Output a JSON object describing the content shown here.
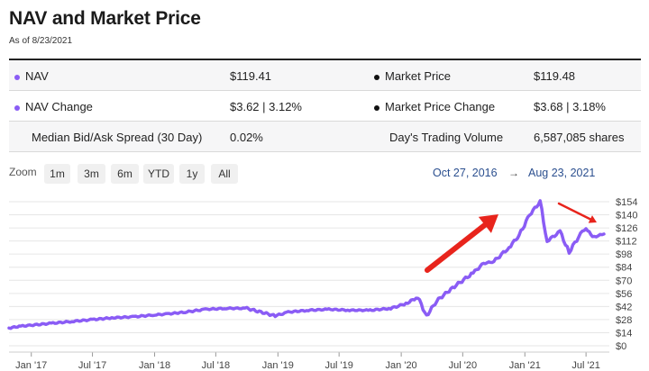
{
  "header": {
    "title": "NAV and Market Price",
    "as_of": "As of 8/23/2021"
  },
  "stats": {
    "nav_label": "NAV",
    "nav_value": "$119.41",
    "market_price_label": "Market Price",
    "market_price_value": "$119.48",
    "nav_change_label": "NAV Change",
    "nav_change_value": "$3.62 | 3.12%",
    "market_price_change_label": "Market Price Change",
    "market_price_change_value": "$3.68 | 3.18%",
    "spread_label": "Median Bid/Ask Spread (30 Day)",
    "spread_value": "0.02%",
    "volume_label": "Day's Trading Volume",
    "volume_value": "6,587,085 shares"
  },
  "colors": {
    "nav": "#8a5cf5",
    "market_price": "#111111",
    "arrow": "#e8241c"
  },
  "zoom": {
    "label": "Zoom",
    "buttons": [
      "1m",
      "3m",
      "6m",
      "YTD",
      "1y",
      "All"
    ]
  },
  "range": {
    "from": "Oct 27, 2016",
    "to": "Aug 23, 2021",
    "separator": "→"
  },
  "chart_data": {
    "type": "line",
    "x_tick_labels": [
      "Jan '17",
      "Jul '17",
      "Jan '18",
      "Jul '18",
      "Jan '19",
      "Jul '19",
      "Jan '20",
      "Jul '20",
      "Jan '21",
      "Jul '21"
    ],
    "y_tick_labels": [
      "$0",
      "$14",
      "$28",
      "$42",
      "$56",
      "$70",
      "$84",
      "$98",
      "$112",
      "$126",
      "$140",
      "$154"
    ],
    "ylim": [
      0,
      154
    ],
    "grid": true,
    "series": [
      {
        "x": [
          "2016-10-27",
          "2016-12-01",
          "2017-01-01",
          "2017-03-01",
          "2017-05-01",
          "2017-07-01",
          "2017-09-01",
          "2017-11-01",
          "2018-01-01",
          "2018-02-08",
          "2018-04-01",
          "2018-06-01",
          "2018-08-01",
          "2018-10-01",
          "2018-12-24",
          "2019-02-01",
          "2019-04-01",
          "2019-06-01",
          "2019-08-01",
          "2019-10-01",
          "2019-12-01",
          "2020-01-15",
          "2020-02-19",
          "2020-03-16",
          "2020-04-15",
          "2020-06-01",
          "2020-08-01",
          "2020-09-01",
          "2020-10-01",
          "2020-11-15",
          "2020-12-15",
          "2021-01-15",
          "2021-02-15",
          "2021-03-08",
          "2021-04-15",
          "2021-05-12",
          "2021-06-15",
          "2021-07-01",
          "2021-07-20",
          "2021-08-23"
        ],
        "y": [
          19,
          21,
          22,
          24,
          26,
          28,
          30,
          31,
          33,
          34,
          36,
          39,
          40,
          40,
          32,
          36,
          38,
          39,
          38,
          38,
          40,
          45,
          52,
          32,
          48,
          62,
          78,
          88,
          90,
          105,
          118,
          140,
          154,
          112,
          122,
          100,
          120,
          126,
          116,
          119.41
        ]
      }
    ],
    "annotations": [
      "arrow",
      "arrow"
    ]
  }
}
